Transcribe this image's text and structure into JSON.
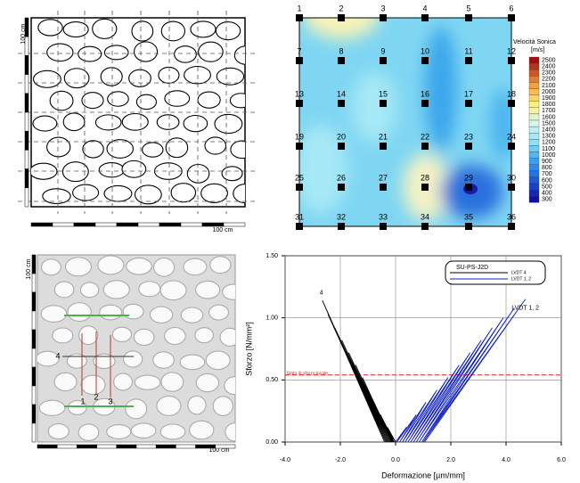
{
  "masonry_drawing": {
    "scale_labels": [
      "100 cm",
      "100 cm"
    ]
  },
  "sonic_map": {
    "point_labels": [
      "1",
      "2",
      "3",
      "4",
      "5",
      "6",
      "7",
      "8",
      "9",
      "10",
      "11",
      "12",
      "13",
      "14",
      "15",
      "16",
      "17",
      "18",
      "19",
      "20",
      "21",
      "22",
      "23",
      "24",
      "25",
      "26",
      "27",
      "28",
      "29",
      "30",
      "31",
      "32",
      "33",
      "34",
      "35",
      "36"
    ],
    "colorbar": {
      "title": "Velocità Sonica",
      "unit": "[m/s]",
      "ticks": [
        2500,
        2400,
        2300,
        2200,
        2100,
        2000,
        1900,
        1800,
        1700,
        1600,
        1500,
        1400,
        1300,
        1200,
        1100,
        1000,
        900,
        800,
        700,
        600,
        500,
        400,
        300
      ]
    }
  },
  "photo": {
    "gauge_labels": [
      "1",
      "2",
      "3",
      "4"
    ],
    "scale_labels": [
      "100 cm",
      "100 cm"
    ]
  },
  "chart_data": {
    "type": "line",
    "xlabel": "Deformazione  [µm/mm]",
    "ylabel": "Sforzo [N/mm²]",
    "xlim": [
      -4,
      6
    ],
    "ylim": [
      0,
      1.5
    ],
    "xticks": [
      {
        "value": -4,
        "label": "-4.0"
      },
      {
        "value": -2,
        "label": "-2.0"
      },
      {
        "value": 0,
        "label": "0.0"
      },
      {
        "value": 2,
        "label": "2.0"
      },
      {
        "value": 4,
        "label": "4.0"
      },
      {
        "value": 6,
        "label": "6.0"
      }
    ],
    "yticks": [
      {
        "value": 0,
        "label": "0.00"
      },
      {
        "value": 0.5,
        "label": "0.50"
      },
      {
        "value": 1,
        "label": "1.00"
      },
      {
        "value": 1.5,
        "label": "1.50"
      }
    ],
    "grid": true,
    "legend": {
      "title": "SU-PS-J2D"
    },
    "series": [
      {
        "name": "LVDT 4",
        "color": "#000000",
        "x": [
          0,
          -0.3,
          -0.05,
          -0.55,
          -0.08,
          -0.8,
          -0.1,
          -1.0,
          -0.13,
          -1.2,
          -0.16,
          -1.45,
          -0.2,
          -1.7,
          -0.24,
          -1.95,
          -0.28,
          -2.2,
          -0.32,
          -2.45,
          -0.36,
          -2.65,
          -0.4
        ],
        "values": [
          0,
          0.12,
          0,
          0.22,
          0,
          0.32,
          0,
          0.42,
          0,
          0.52,
          0,
          0.62,
          0,
          0.72,
          0,
          0.82,
          0,
          0.92,
          0,
          1.03,
          0,
          1.14,
          0
        ]
      },
      {
        "name": "LVDT 1, 2",
        "color": "#1020c0",
        "x": [
          0,
          0.4,
          0.05,
          0.75,
          0.15,
          1.1,
          0.25,
          1.5,
          0.35,
          1.9,
          0.45,
          2.3,
          0.55,
          2.7,
          0.65,
          3.1,
          0.75,
          3.5,
          0.85,
          3.9,
          0.95,
          4.3,
          1.0,
          4.7,
          1.05
        ],
        "values": [
          0,
          0.12,
          0,
          0.22,
          0,
          0.32,
          0,
          0.42,
          0,
          0.52,
          0,
          0.62,
          0,
          0.72,
          0,
          0.82,
          0,
          0.92,
          0,
          1.0,
          0,
          1.08,
          0,
          1.15,
          0
        ]
      }
    ],
    "annotations": [
      "4",
      "LVDT 1, 2",
      "Stato di sforzo locale"
    ],
    "reference_line": {
      "value": 0.54,
      "color": "#e02020"
    }
  }
}
